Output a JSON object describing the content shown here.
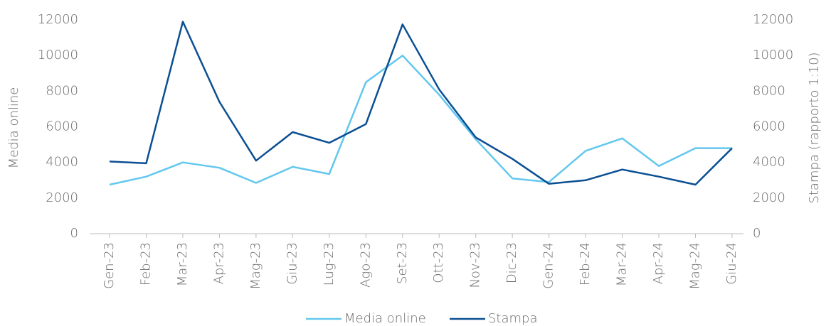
{
  "chart_data": {
    "type": "line",
    "categories": [
      "Gen-23",
      "Feb-23",
      "Mar-23",
      "Apr-23",
      "Mag-23",
      "Giu-23",
      "Lug-23",
      "Ago-23",
      "Set-23",
      "Ott-23",
      "Nov-23",
      "Dic-23",
      "Gen-24",
      "Feb-24",
      "Mar-24",
      "Apr-24",
      "Mag-24",
      "Giu-24"
    ],
    "series": [
      {
        "name": "Media online",
        "color": "#63c7ee",
        "values": [
          2750,
          3200,
          4000,
          3700,
          2850,
          3750,
          3350,
          8500,
          10000,
          7800,
          5300,
          3100,
          2900,
          4650,
          5350,
          3800,
          4800,
          4800
        ]
      },
      {
        "name": "Stampa",
        "color": "#0b4f93",
        "axis": "y2",
        "values": [
          4050,
          3950,
          11900,
          7400,
          4100,
          5700,
          5100,
          6150,
          11750,
          8100,
          5400,
          4200,
          2800,
          3000,
          3600,
          3200,
          2750,
          4800
        ]
      }
    ],
    "ylabel": "Media online",
    "y2label": "Stampa (rapporto 1:10)",
    "ylim": [
      0,
      12000
    ],
    "yticks": [
      0,
      2000,
      4000,
      6000,
      8000,
      10000,
      12000
    ],
    "y2lim": [
      0,
      12000
    ],
    "y2ticks": [
      0,
      2000,
      4000,
      6000,
      8000,
      10000,
      12000
    ],
    "legend": "bottom"
  }
}
